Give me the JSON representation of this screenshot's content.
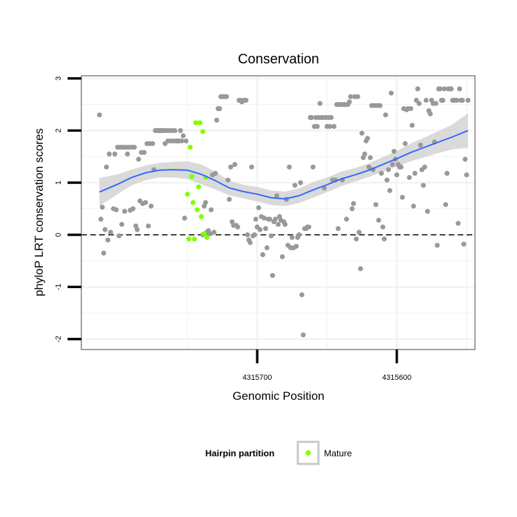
{
  "chart_data": {
    "type": "scatter",
    "title": "Conservation",
    "xlabel": "Genomic Position",
    "ylabel": "phyloP LRT conservation scores",
    "xlim": [
      4315826,
      4315544
    ],
    "ylim": [
      -2.2,
      3.05
    ],
    "x_reversed": true,
    "x_ticks": [
      4315700,
      4315600
    ],
    "x_tick_labels": [
      "4315700",
      "4315600"
    ],
    "y_ticks": [
      -2,
      -1,
      0,
      1,
      2,
      3
    ],
    "y_tick_labels": [
      "-2",
      "-1",
      "0",
      "1",
      "2",
      "3"
    ],
    "grid": true,
    "reference_line": {
      "y": 0,
      "style": "dashed"
    },
    "legend": {
      "title": "Hairpin partition",
      "position": "bottom",
      "entries": [
        "Mature"
      ]
    },
    "colors": {
      "background": "#ffffff",
      "grey_points": "#999999",
      "mature_points": "#80ff00",
      "smooth_line": "#3366ff",
      "confidence_band": "#d3d3d3",
      "grid": "#f2f2f2",
      "panel_border": "#7f7f7f"
    },
    "series": [
      {
        "color_role": "grey_points",
        "points": [
          [
            4315813,
            2.3
          ],
          [
            4315812,
            0.3
          ],
          [
            4315811,
            0.53
          ],
          [
            4315810,
            -0.35
          ],
          [
            4315809,
            0.1
          ],
          [
            4315808,
            1.3
          ],
          [
            4315807,
            -0.1
          ],
          [
            4315806,
            1.55
          ],
          [
            4315805,
            0.05
          ],
          [
            4315803,
            0.5
          ],
          [
            4315802,
            1.55
          ],
          [
            4315801,
            0.48
          ],
          [
            4315800,
            1.68
          ],
          [
            4315799,
            -0.02
          ],
          [
            4315798,
            1.68
          ],
          [
            4315797,
            0.2
          ],
          [
            4315796,
            1.68
          ],
          [
            4315795,
            0.45
          ],
          [
            4315794,
            1.68
          ],
          [
            4315793,
            1.55
          ],
          [
            4315792,
            1.68
          ],
          [
            4315791,
            0.47
          ],
          [
            4315790,
            1.68
          ],
          [
            4315789,
            0.5
          ],
          [
            4315788,
            1.68
          ],
          [
            4315787,
            0.17
          ],
          [
            4315786,
            0.1
          ],
          [
            4315785,
            1.45
          ],
          [
            4315784,
            0.65
          ],
          [
            4315783,
            1.58
          ],
          [
            4315782,
            0.6
          ],
          [
            4315781,
            1.58
          ],
          [
            4315780,
            0.62
          ],
          [
            4315779,
            1.75
          ],
          [
            4315778,
            0.17
          ],
          [
            4315777,
            1.75
          ],
          [
            4315776,
            0.55
          ],
          [
            4315775,
            1.75
          ],
          [
            4315774,
            1.25
          ],
          [
            4315773,
            2.0
          ],
          [
            4315772,
            2.0
          ],
          [
            4315771,
            2.0
          ],
          [
            4315770,
            2.0
          ],
          [
            4315769,
            2.0
          ],
          [
            4315768,
            2.0
          ],
          [
            4315767,
            2.0
          ],
          [
            4315766,
            1.75
          ],
          [
            4315765,
            2.0
          ],
          [
            4315764,
            1.8
          ],
          [
            4315763,
            2.0
          ],
          [
            4315762,
            1.8
          ],
          [
            4315761,
            2.0
          ],
          [
            4315760,
            1.8
          ],
          [
            4315759,
            2.0
          ],
          [
            4315758,
            1.8
          ],
          [
            4315757,
            1.8
          ],
          [
            4315756,
            1.8
          ],
          [
            4315755,
            2.0
          ],
          [
            4315754,
            1.8
          ],
          [
            4315753,
            1.9
          ],
          [
            4315752,
            0.32
          ],
          [
            4315751,
            1.8
          ],
          [
            4315739,
            0.0
          ],
          [
            4315738,
            0.55
          ],
          [
            4315737,
            0.62
          ],
          [
            4315736,
            0.05
          ],
          [
            4315735,
            0.08
          ],
          [
            4315734,
            0.02
          ],
          [
            4315733,
            0.48
          ],
          [
            4315732,
            1.15
          ],
          [
            4315731,
            0.05
          ],
          [
            4315730,
            1.18
          ],
          [
            4315729,
            2.2
          ],
          [
            4315728,
            2.42
          ],
          [
            4315727,
            2.42
          ],
          [
            4315726,
            2.65
          ],
          [
            4315725,
            2.65
          ],
          [
            4315724,
            2.65
          ],
          [
            4315723,
            2.65
          ],
          [
            4315722,
            2.65
          ],
          [
            4315721,
            1.05
          ],
          [
            4315720,
            0.68
          ],
          [
            4315719,
            1.3
          ],
          [
            4315718,
            0.25
          ],
          [
            4315717,
            0.18
          ],
          [
            4315716,
            1.35
          ],
          [
            4315715,
            0.18
          ],
          [
            4315714,
            0.15
          ],
          [
            4315713,
            2.58
          ],
          [
            4315712,
            2.58
          ],
          [
            4315711,
            2.55
          ],
          [
            4315710,
            2.58
          ],
          [
            4315709,
            2.58
          ],
          [
            4315708,
            2.58
          ],
          [
            4315707,
            0.0
          ],
          [
            4315706,
            -0.1
          ],
          [
            4315705,
            -0.15
          ],
          [
            4315704,
            1.3
          ],
          [
            4315703,
            -0.02
          ],
          [
            4315702,
            0.0
          ],
          [
            4315701,
            0.3
          ],
          [
            4315700,
            0.15
          ],
          [
            4315699,
            0.52
          ],
          [
            4315698,
            0.1
          ],
          [
            4315697,
            0.35
          ],
          [
            4315696,
            -0.38
          ],
          [
            4315695,
            0.32
          ],
          [
            4315694,
            0.12
          ],
          [
            4315693,
            -0.25
          ],
          [
            4315692,
            0.3
          ],
          [
            4315691,
            0.3
          ],
          [
            4315690,
            -0.02
          ],
          [
            4315689,
            -0.78
          ],
          [
            4315688,
            0.25
          ],
          [
            4315687,
            0.3
          ],
          [
            4315686,
            0.75
          ],
          [
            4315685,
            0.2
          ],
          [
            4315684,
            0.35
          ],
          [
            4315683,
            0.28
          ],
          [
            4315682,
            -0.42
          ],
          [
            4315681,
            0.25
          ],
          [
            4315680,
            0.2
          ],
          [
            4315679,
            0.68
          ],
          [
            4315678,
            -0.2
          ],
          [
            4315677,
            1.3
          ],
          [
            4315676,
            -0.25
          ],
          [
            4315675,
            -0.05
          ],
          [
            4315674,
            -0.25
          ],
          [
            4315673,
            0.95
          ],
          [
            4315672,
            -0.22
          ],
          [
            4315671,
            -0.05
          ],
          [
            4315670,
            0.0
          ],
          [
            4315669,
            1.0
          ],
          [
            4315668,
            -1.15
          ],
          [
            4315667,
            -1.92
          ],
          [
            4315666,
            0.12
          ],
          [
            4315665,
            0.12
          ],
          [
            4315664,
            0.15
          ],
          [
            4315663,
            0.15
          ],
          [
            4315662,
            2.25
          ],
          [
            4315661,
            2.25
          ],
          [
            4315660,
            1.3
          ],
          [
            4315659,
            2.08
          ],
          [
            4315658,
            2.25
          ],
          [
            4315657,
            2.08
          ],
          [
            4315656,
            2.25
          ],
          [
            4315655,
            2.52
          ],
          [
            4315654,
            2.25
          ],
          [
            4315653,
            2.25
          ],
          [
            4315652,
            0.9
          ],
          [
            4315651,
            2.25
          ],
          [
            4315650,
            2.08
          ],
          [
            4315649,
            2.25
          ],
          [
            4315648,
            2.08
          ],
          [
            4315647,
            2.25
          ],
          [
            4315646,
            1.05
          ],
          [
            4315645,
            2.08
          ],
          [
            4315644,
            1.05
          ],
          [
            4315643,
            2.5
          ],
          [
            4315642,
            0.12
          ],
          [
            4315641,
            2.5
          ],
          [
            4315640,
            2.5
          ],
          [
            4315639,
            1.05
          ],
          [
            4315638,
            2.5
          ],
          [
            4315637,
            2.5
          ],
          [
            4315636,
            0.3
          ],
          [
            4315635,
            2.5
          ],
          [
            4315634,
            2.55
          ],
          [
            4315633,
            2.65
          ],
          [
            4315632,
            0.5
          ],
          [
            4315631,
            0.6
          ],
          [
            4315630,
            2.65
          ],
          [
            4315629,
            -0.08
          ],
          [
            4315628,
            2.65
          ],
          [
            4315627,
            0.05
          ],
          [
            4315626,
            -0.65
          ],
          [
            4315625,
            1.95
          ],
          [
            4315624,
            1.48
          ],
          [
            4315623,
            1.55
          ],
          [
            4315622,
            1.8
          ],
          [
            4315621,
            1.85
          ],
          [
            4315620,
            1.3
          ],
          [
            4315619,
            1.48
          ],
          [
            4315618,
            2.48
          ],
          [
            4315617,
            1.25
          ],
          [
            4315616,
            2.48
          ],
          [
            4315615,
            0.58
          ],
          [
            4315614,
            2.48
          ],
          [
            4315613,
            0.28
          ],
          [
            4315612,
            2.48
          ],
          [
            4315611,
            1.18
          ],
          [
            4315610,
            0.15
          ],
          [
            4315609,
            -0.08
          ],
          [
            4315608,
            2.3
          ],
          [
            4315607,
            1.05
          ],
          [
            4315606,
            1.25
          ],
          [
            4315605,
            0.85
          ],
          [
            4315604,
            2.72
          ],
          [
            4315603,
            1.35
          ],
          [
            4315602,
            1.6
          ],
          [
            4315601,
            1.45
          ],
          [
            4315600,
            1.15
          ],
          [
            4315599,
            1.35
          ],
          [
            4315598,
            1.3
          ],
          [
            4315597,
            1.3
          ],
          [
            4315596,
            0.72
          ],
          [
            4315595,
            2.42
          ],
          [
            4315594,
            1.75
          ],
          [
            4315593,
            2.4
          ],
          [
            4315592,
            2.42
          ],
          [
            4315591,
            1.1
          ],
          [
            4315590,
            2.42
          ],
          [
            4315589,
            2.1
          ],
          [
            4315588,
            0.55
          ],
          [
            4315587,
            1.18
          ],
          [
            4315586,
            2.58
          ],
          [
            4315585,
            2.8
          ],
          [
            4315584,
            2.52
          ],
          [
            4315583,
            1.72
          ],
          [
            4315582,
            1.25
          ],
          [
            4315581,
            0.95
          ],
          [
            4315580,
            1.3
          ],
          [
            4315579,
            2.58
          ],
          [
            4315578,
            0.45
          ],
          [
            4315577,
            2.38
          ],
          [
            4315576,
            2.32
          ],
          [
            4315575,
            2.58
          ],
          [
            4315574,
            2.52
          ],
          [
            4315573,
            1.78
          ],
          [
            4315572,
            2.52
          ],
          [
            4315571,
            -0.2
          ],
          [
            4315570,
            2.8
          ],
          [
            4315569,
            2.8
          ],
          [
            4315568,
            2.58
          ],
          [
            4315567,
            2.58
          ],
          [
            4315566,
            2.8
          ],
          [
            4315565,
            0.58
          ],
          [
            4315564,
            1.18
          ],
          [
            4315563,
            2.8
          ],
          [
            4315562,
            2.8
          ],
          [
            4315561,
            2.8
          ],
          [
            4315560,
            2.58
          ],
          [
            4315559,
            2.58
          ],
          [
            4315558,
            2.58
          ],
          [
            4315557,
            2.58
          ],
          [
            4315556,
            0.22
          ],
          [
            4315555,
            2.8
          ],
          [
            4315554,
            2.58
          ],
          [
            4315553,
            2.58
          ],
          [
            4315552,
            -0.18
          ],
          [
            4315551,
            1.45
          ],
          [
            4315550,
            1.15
          ],
          [
            4315549,
            2.58
          ]
        ]
      },
      {
        "name": "Mature",
        "color_role": "mature_points",
        "points": [
          [
            4315750,
            0.78
          ],
          [
            4315749,
            -0.08
          ],
          [
            4315748,
            1.68
          ],
          [
            4315747,
            1.12
          ],
          [
            4315746,
            0.62
          ],
          [
            4315745,
            -0.08
          ],
          [
            4315744,
            2.15
          ],
          [
            4315743,
            0.48
          ],
          [
            4315742,
            0.92
          ],
          [
            4315741,
            2.15
          ],
          [
            4315740,
            0.35
          ],
          [
            4315739,
            1.98
          ],
          [
            4315738,
            0.02
          ],
          [
            4315737,
            1.1
          ],
          [
            4315736,
            -0.05
          ]
        ]
      }
    ],
    "smooth_fit": {
      "method": "loess",
      "x": [
        4315813,
        4315800,
        4315790,
        4315780,
        4315770,
        4315760,
        4315750,
        4315740,
        4315730,
        4315720,
        4315710,
        4315700,
        4315690,
        4315680,
        4315670,
        4315660,
        4315650,
        4315640,
        4315630,
        4315620,
        4315610,
        4315600,
        4315590,
        4315580,
        4315570,
        4315560,
        4315549
      ],
      "y": [
        0.82,
        0.97,
        1.1,
        1.19,
        1.24,
        1.25,
        1.24,
        1.16,
        1.04,
        0.9,
        0.83,
        0.78,
        0.71,
        0.69,
        0.75,
        0.86,
        0.96,
        1.07,
        1.15,
        1.24,
        1.35,
        1.46,
        1.58,
        1.68,
        1.78,
        1.88,
        2.0
      ],
      "lower": [
        0.55,
        0.78,
        0.95,
        1.05,
        1.1,
        1.1,
        1.07,
        0.97,
        0.87,
        0.76,
        0.7,
        0.64,
        0.57,
        0.55,
        0.61,
        0.71,
        0.82,
        0.93,
        1.02,
        1.11,
        1.21,
        1.31,
        1.41,
        1.49,
        1.57,
        1.64,
        1.67
      ],
      "upper": [
        1.09,
        1.16,
        1.25,
        1.33,
        1.38,
        1.4,
        1.41,
        1.35,
        1.21,
        1.04,
        0.96,
        0.92,
        0.85,
        0.83,
        0.89,
        1.01,
        1.1,
        1.21,
        1.28,
        1.37,
        1.49,
        1.61,
        1.75,
        1.87,
        1.99,
        2.12,
        2.33
      ]
    }
  }
}
